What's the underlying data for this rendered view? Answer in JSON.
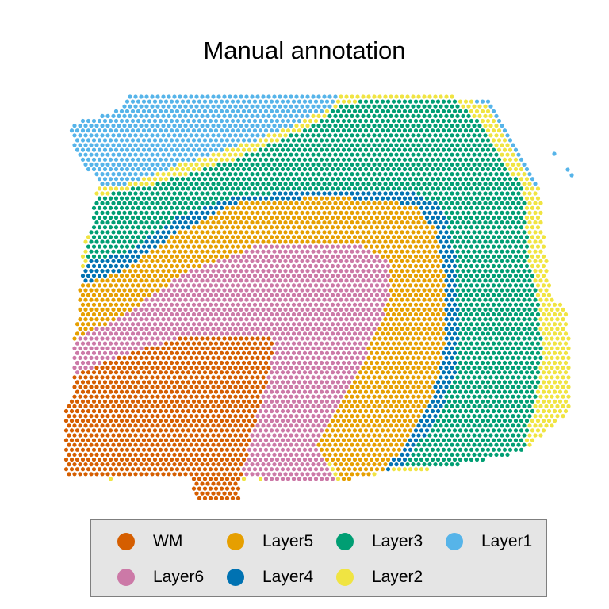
{
  "chart_data": {
    "type": "scatter",
    "title": "Manual annotation",
    "xlabel": "",
    "ylabel": "",
    "grid": false,
    "legend_position": "bottom",
    "series": [
      {
        "name": "WM",
        "color": "#D55E00"
      },
      {
        "name": "Layer6",
        "color": "#CC79A7"
      },
      {
        "name": "Layer5",
        "color": "#E69F00"
      },
      {
        "name": "Layer4",
        "color": "#0072B2"
      },
      {
        "name": "Layer3",
        "color": "#009E73"
      },
      {
        "name": "Layer2",
        "color": "#F0E442"
      },
      {
        "name": "Layer1",
        "color": "#56B4E9"
      }
    ],
    "legend_order": [
      "WM",
      "Layer5",
      "Layer3",
      "Layer1",
      "Layer6",
      "Layer4",
      "Layer2"
    ]
  }
}
